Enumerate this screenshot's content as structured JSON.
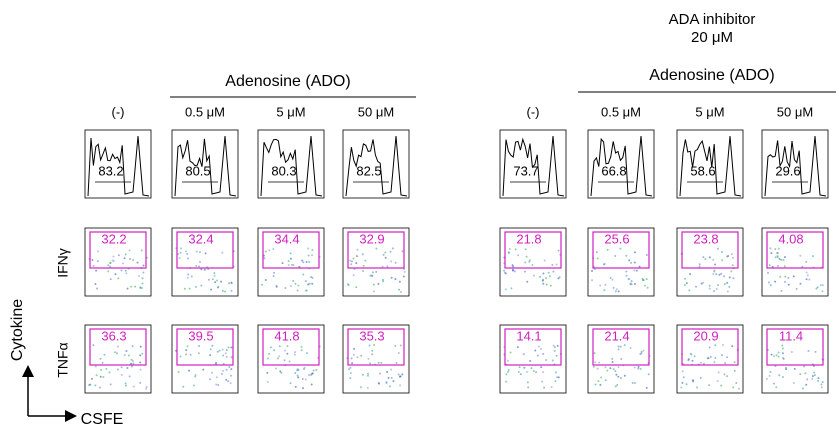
{
  "left": {
    "group_label": "Adenosine (ADO)",
    "columns": [
      "(-)",
      "0.5 μM",
      "5 μM",
      "50 μM"
    ],
    "proliferation": [
      83.2,
      80.5,
      80.3,
      82.5
    ],
    "ifng": [
      32.2,
      32.4,
      34.4,
      32.9
    ],
    "tnfa": [
      36.3,
      39.5,
      41.8,
      35.3
    ]
  },
  "right": {
    "title": [
      "ADA inhibitor",
      "20 μM"
    ],
    "group_label": "Adenosine (ADO)",
    "columns": [
      "(-)",
      "0.5 μM",
      "5 μM",
      "50 μM"
    ],
    "proliferation": [
      73.7,
      66.8,
      58.6,
      29.6
    ],
    "ifng": [
      21.8,
      25.6,
      23.8,
      4.08
    ],
    "tnfa": [
      14.1,
      21.4,
      20.9,
      11.4
    ]
  },
  "row_labels": [
    "IFNγ",
    "TNFα"
  ],
  "y_axis_label": "Cytokine",
  "x_axis_label": "CSFE"
}
